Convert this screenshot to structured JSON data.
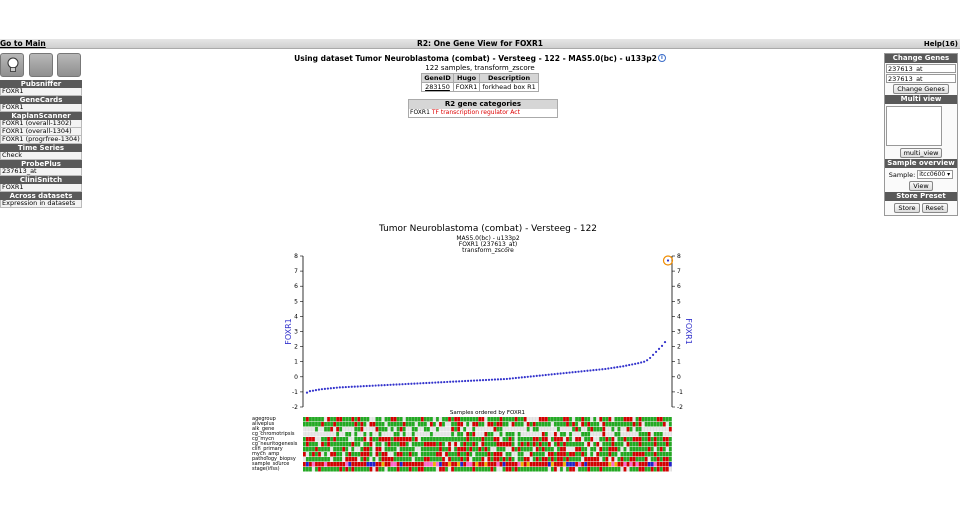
{
  "header": {
    "go_to_main": "Go to Main",
    "title": "R2: One Gene View for FOXR1",
    "help": "Help(16)"
  },
  "left_panel": {
    "sections": [
      {
        "title": "Pubsniffer",
        "items": [
          "FOXR1"
        ]
      },
      {
        "title": "GeneCards",
        "items": [
          "FOXR1"
        ]
      },
      {
        "title": "KaplanScanner",
        "items": [
          "FOXR1 (overall-1302)",
          "FOXR1 (overall-1304)",
          "FOXR1 (progrfree-1304)"
        ]
      },
      {
        "title": "Time Series",
        "items": [
          "Check"
        ]
      },
      {
        "title": "ProbePlus",
        "items": [
          "237613_at"
        ]
      },
      {
        "title": "CliniSnitch",
        "items": [
          "FOXR1"
        ]
      },
      {
        "title": "Across datasets",
        "items": [
          "Expression in datasets"
        ]
      }
    ]
  },
  "center": {
    "dataset_line": "Using dataset Tumor Neuroblastoma (combat) - Versteeg - 122 - MAS5.0(bc) - u133p2",
    "samples_line": "122 samples, transform_zscore",
    "gene_table": {
      "headers": [
        "GeneID",
        "Hugo",
        "Description"
      ],
      "row": {
        "geneid": "283150",
        "hugo": "FOXR1",
        "description": "forkhead box R1"
      }
    },
    "categories": {
      "title": "R2 gene categories",
      "gene": "FOXR1",
      "tf_mark": "TF",
      "text": "transcription regulator Act"
    }
  },
  "right_panel": {
    "change_genes": {
      "title": "Change Genes",
      "gene1": "237613_at",
      "gene2": "237613_at",
      "button": "Change Genes"
    },
    "multi_view": {
      "title": "Multi view",
      "button": "multi_view"
    },
    "sample_overview": {
      "title": "Sample overview",
      "label": "Sample:",
      "selected": "itcc0600",
      "button": "View"
    },
    "store_preset": {
      "title": "Store Preset",
      "store": "Store",
      "reset": "Reset"
    }
  },
  "chart_data": {
    "type": "scatter",
    "title": "Tumor Neuroblastoma (combat) - Versteeg - 122",
    "subtitle_lines": [
      "MAS5.0(bc) - u133p2",
      "FOXR1 (237613_at)",
      "transform_zscore"
    ],
    "ylabel": "FOXR1",
    "xlabel": "Samples ordered by FOXR1",
    "ylim": [
      -2,
      8
    ],
    "yticks": [
      -2,
      -1,
      0,
      1,
      2,
      3,
      4,
      5,
      6,
      7,
      8
    ],
    "n_samples": 122,
    "point_color": "#3333cc",
    "highlight_color": "#f08c00",
    "values": [
      -1.05,
      -0.95,
      -0.92,
      -0.88,
      -0.85,
      -0.82,
      -0.8,
      -0.78,
      -0.76,
      -0.74,
      -0.72,
      -0.7,
      -0.69,
      -0.68,
      -0.67,
      -0.66,
      -0.65,
      -0.64,
      -0.63,
      -0.62,
      -0.61,
      -0.6,
      -0.59,
      -0.58,
      -0.57,
      -0.56,
      -0.55,
      -0.54,
      -0.53,
      -0.52,
      -0.51,
      -0.5,
      -0.49,
      -0.48,
      -0.47,
      -0.46,
      -0.45,
      -0.44,
      -0.43,
      -0.42,
      -0.41,
      -0.4,
      -0.39,
      -0.38,
      -0.37,
      -0.36,
      -0.35,
      -0.34,
      -0.33,
      -0.32,
      -0.31,
      -0.3,
      -0.29,
      -0.28,
      -0.27,
      -0.26,
      -0.25,
      -0.24,
      -0.23,
      -0.22,
      -0.21,
      -0.2,
      -0.19,
      -0.18,
      -0.17,
      -0.16,
      -0.15,
      -0.14,
      -0.12,
      -0.1,
      -0.08,
      -0.06,
      -0.04,
      -0.02,
      0.0,
      0.02,
      0.04,
      0.06,
      0.08,
      0.1,
      0.12,
      0.14,
      0.16,
      0.18,
      0.2,
      0.22,
      0.24,
      0.26,
      0.28,
      0.3,
      0.32,
      0.34,
      0.36,
      0.38,
      0.4,
      0.42,
      0.44,
      0.46,
      0.48,
      0.5,
      0.52,
      0.55,
      0.58,
      0.61,
      0.64,
      0.67,
      0.7,
      0.74,
      0.78,
      0.82,
      0.86,
      0.9,
      0.95,
      1.0,
      1.1,
      1.25,
      1.45,
      1.65,
      1.85,
      2.05,
      2.3,
      7.7
    ],
    "track_labels": [
      "agegroup",
      "aliveplus",
      "alk_gene",
      "cg_chromotripsis",
      "cg_mycn",
      "cg_neuritogenesis",
      "clin_primary",
      "mycn_amp",
      "pathology_biopsy",
      "sample_source",
      "stage(inss)"
    ],
    "track_palette": [
      "#d40000",
      "#22aa22",
      "#e8e8e8",
      "#2222cc",
      "#f0b000",
      "#ff66cc"
    ]
  }
}
